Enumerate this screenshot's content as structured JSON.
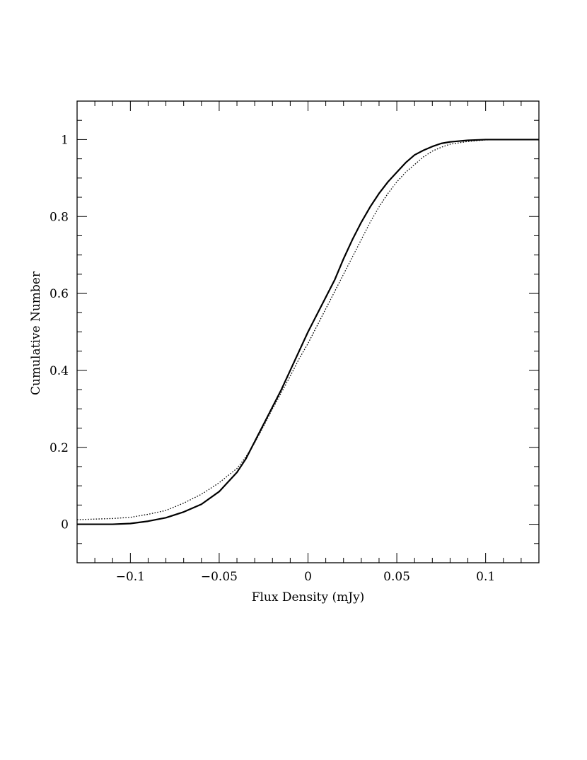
{
  "chart_data": {
    "type": "line",
    "title": "",
    "xlabel": "Flux Density (mJy)",
    "ylabel": "Cumulative Number",
    "xlim": [
      -0.13,
      0.13
    ],
    "ylim": [
      -0.1,
      1.1
    ],
    "x_major_ticks": [
      -0.1,
      -0.05,
      0,
      0.05,
      0.1
    ],
    "x_tick_labels": [
      "−0.1",
      "−0.05",
      "0",
      "0.05",
      "0.1"
    ],
    "y_major_ticks": [
      0,
      0.2,
      0.4,
      0.6,
      0.8,
      1
    ],
    "y_tick_labels": [
      "0",
      "0.2",
      "0.4",
      "0.6",
      "0.8",
      "1"
    ],
    "grid": false,
    "series": [
      {
        "style": "solid",
        "color": "#000000",
        "points": [
          [
            -0.13,
            0.0
          ],
          [
            -0.11,
            0.0
          ],
          [
            -0.1,
            0.002
          ],
          [
            -0.09,
            0.008
          ],
          [
            -0.08,
            0.017
          ],
          [
            -0.07,
            0.032
          ],
          [
            -0.06,
            0.052
          ],
          [
            -0.05,
            0.085
          ],
          [
            -0.04,
            0.135
          ],
          [
            -0.035,
            0.17
          ],
          [
            -0.03,
            0.215
          ],
          [
            -0.025,
            0.26
          ],
          [
            -0.02,
            0.305
          ],
          [
            -0.015,
            0.35
          ],
          [
            -0.01,
            0.4
          ],
          [
            -0.005,
            0.45
          ],
          [
            0.0,
            0.5
          ],
          [
            0.005,
            0.545
          ],
          [
            0.01,
            0.59
          ],
          [
            0.015,
            0.635
          ],
          [
            0.02,
            0.69
          ],
          [
            0.025,
            0.74
          ],
          [
            0.03,
            0.785
          ],
          [
            0.035,
            0.825
          ],
          [
            0.04,
            0.86
          ],
          [
            0.045,
            0.89
          ],
          [
            0.05,
            0.915
          ],
          [
            0.055,
            0.94
          ],
          [
            0.06,
            0.96
          ],
          [
            0.065,
            0.972
          ],
          [
            0.07,
            0.982
          ],
          [
            0.075,
            0.99
          ],
          [
            0.08,
            0.994
          ],
          [
            0.09,
            0.998
          ],
          [
            0.1,
            1.0
          ],
          [
            0.13,
            1.0
          ]
        ]
      },
      {
        "style": "dotted",
        "color": "#000000",
        "points": [
          [
            -0.13,
            0.012
          ],
          [
            -0.11,
            0.015
          ],
          [
            -0.1,
            0.018
          ],
          [
            -0.09,
            0.026
          ],
          [
            -0.08,
            0.036
          ],
          [
            -0.07,
            0.055
          ],
          [
            -0.06,
            0.078
          ],
          [
            -0.05,
            0.108
          ],
          [
            -0.04,
            0.145
          ],
          [
            -0.035,
            0.175
          ],
          [
            -0.03,
            0.212
          ],
          [
            -0.025,
            0.255
          ],
          [
            -0.02,
            0.3
          ],
          [
            -0.015,
            0.342
          ],
          [
            -0.01,
            0.385
          ],
          [
            -0.005,
            0.43
          ],
          [
            0.0,
            0.47
          ],
          [
            0.005,
            0.515
          ],
          [
            0.01,
            0.56
          ],
          [
            0.015,
            0.605
          ],
          [
            0.02,
            0.65
          ],
          [
            0.025,
            0.695
          ],
          [
            0.03,
            0.74
          ],
          [
            0.035,
            0.785
          ],
          [
            0.04,
            0.825
          ],
          [
            0.045,
            0.86
          ],
          [
            0.05,
            0.89
          ],
          [
            0.055,
            0.915
          ],
          [
            0.06,
            0.935
          ],
          [
            0.065,
            0.955
          ],
          [
            0.07,
            0.97
          ],
          [
            0.075,
            0.98
          ],
          [
            0.08,
            0.988
          ],
          [
            0.09,
            0.995
          ],
          [
            0.1,
            0.999
          ],
          [
            0.11,
            1.0
          ],
          [
            0.13,
            1.0
          ]
        ]
      }
    ]
  }
}
